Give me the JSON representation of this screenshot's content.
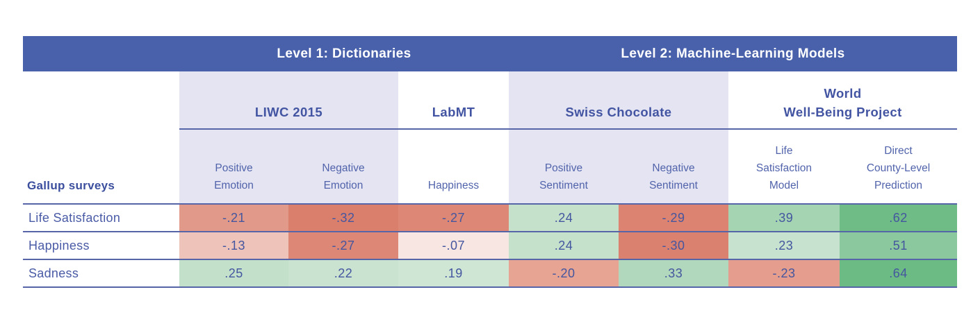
{
  "banner": {
    "level1": "Level 1: Dictionaries",
    "level2": "Level 2: Machine-Learning Models",
    "bg": "#4961ab",
    "text_color": "#ffffff"
  },
  "method_groups": [
    {
      "label": "LIWC 2015"
    },
    {
      "label": "LabMT"
    },
    {
      "label": "Swiss Chocolate"
    },
    {
      "label": "World\nWell-Being Project"
    }
  ],
  "row_group_header": "Gallup surveys",
  "column_headers": [
    {
      "label": "Positive\nEmotion"
    },
    {
      "label": "Negative\nEmotion"
    },
    {
      "label": "Happiness"
    },
    {
      "label": "Positive\nSentiment"
    },
    {
      "label": "Negative\nSentiment"
    },
    {
      "label": "Life\nSatisfaction\nModel"
    },
    {
      "label": "Direct\nCounty-Level\nPrediction"
    }
  ],
  "rows": [
    {
      "label": "Life Satisfaction",
      "cells": [
        {
          "value": "-.21",
          "bg": "#e19a89"
        },
        {
          "value": "-.32",
          "bg": "#db7f6d"
        },
        {
          "value": "-.27",
          "bg": "#dd8776"
        },
        {
          "value": ".24",
          "bg": "#c5e1cc"
        },
        {
          "value": "-.29",
          "bg": "#dc8372"
        },
        {
          "value": ".39",
          "bg": "#a5d4b2"
        },
        {
          "value": ".62",
          "bg": "#6fbc86"
        }
      ]
    },
    {
      "label": "Happiness",
      "cells": [
        {
          "value": "-.13",
          "bg": "#eec3ba"
        },
        {
          "value": "-.27",
          "bg": "#dd8776"
        },
        {
          "value": "-.07",
          "bg": "#f8e6e2"
        },
        {
          "value": ".24",
          "bg": "#c5e1cc"
        },
        {
          "value": "-.30",
          "bg": "#db8170"
        },
        {
          "value": ".23",
          "bg": "#c7e2ce"
        },
        {
          "value": ".51",
          "bg": "#8bc89d"
        }
      ]
    },
    {
      "label": "Sadness",
      "cells": [
        {
          "value": ".25",
          "bg": "#c3e0cb"
        },
        {
          "value": ".22",
          "bg": "#c9e3d0"
        },
        {
          "value": ".19",
          "bg": "#cfe6d5"
        },
        {
          "value": "-.20",
          "bg": "#e7a493"
        },
        {
          "value": ".33",
          "bg": "#b1d8bc"
        },
        {
          "value": "-.23",
          "bg": "#e59e8d"
        },
        {
          "value": ".64",
          "bg": "#6cba84"
        }
      ]
    }
  ],
  "colors": {
    "banner_blue": "#4961ab",
    "header_lavender": "#e4e4f2",
    "text_blue": "#4355a2",
    "grid_line_blue": "#5565a8",
    "negative_strong": "#db7f6d",
    "negative_weak": "#f8e6e2",
    "positive_weak": "#cfe6d5",
    "positive_strong": "#6cba84"
  },
  "chart_data": {
    "type": "table",
    "title": "",
    "row_groups_label": "Gallup surveys",
    "column_groups": [
      {
        "level": "Level 1: Dictionaries",
        "methods": [
          {
            "name": "LIWC 2015",
            "columns": [
              "Positive Emotion",
              "Negative Emotion"
            ]
          },
          {
            "name": "LabMT",
            "columns": [
              "Happiness"
            ]
          }
        ]
      },
      {
        "level": "Level 2: Machine-Learning Models",
        "methods": [
          {
            "name": "Swiss Chocolate",
            "columns": [
              "Positive Sentiment",
              "Negative Sentiment"
            ]
          },
          {
            "name": "World Well-Being Project",
            "columns": [
              "Life Satisfaction Model",
              "Direct County-Level Prediction"
            ]
          }
        ]
      }
    ],
    "columns": [
      "Positive Emotion",
      "Negative Emotion",
      "Happiness",
      "Positive Sentiment",
      "Negative Sentiment",
      "Life Satisfaction Model",
      "Direct County-Level Prediction"
    ],
    "rows": [
      "Life Satisfaction",
      "Happiness",
      "Sadness"
    ],
    "values": [
      [
        -0.21,
        -0.32,
        -0.27,
        0.24,
        -0.29,
        0.39,
        0.62
      ],
      [
        -0.13,
        -0.27,
        -0.07,
        0.24,
        -0.3,
        0.23,
        0.51
      ],
      [
        0.25,
        0.22,
        0.19,
        -0.2,
        0.33,
        -0.23,
        0.64
      ]
    ],
    "color_encoding": "red shades = negative correlation, green shades = positive correlation; darker = larger magnitude"
  }
}
